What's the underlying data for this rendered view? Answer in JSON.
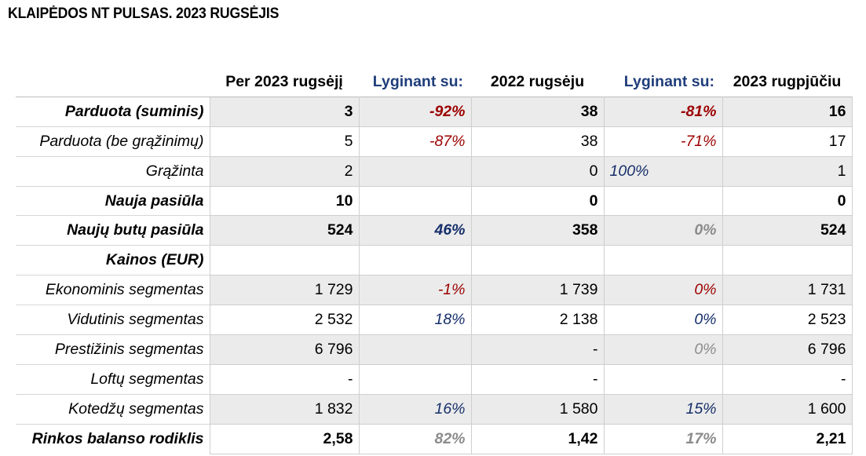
{
  "title": "KLAIPĖDOS NT PULSAS. 2023 RUGSĖJIS",
  "columns": {
    "c1": "Per 2023 rugsėjį",
    "c2": "Lyginant su:",
    "c3": "2022 rugsėju",
    "c4": "Lyginant su:",
    "c5": "2023 rugpjūčiu"
  },
  "colors": {
    "red": "#9c0000",
    "blue": "#162f6a",
    "gray": "#8c8c8c",
    "shade": "#ebebeb"
  },
  "rows": [
    {
      "label": "Parduota (suminis)",
      "bold": true,
      "shade": true,
      "c1": "3",
      "c2": "-92%",
      "c2_color": "red",
      "c3": "38",
      "c4": "-81%",
      "c4_color": "red",
      "c5": "16"
    },
    {
      "label": "Parduota (be grąžinimų)",
      "bold": false,
      "shade": false,
      "c1": "5",
      "c2": "-87%",
      "c2_color": "red",
      "c3": "38",
      "c4": "-71%",
      "c4_color": "red",
      "c5": "17"
    },
    {
      "label": "Grąžinta",
      "bold": false,
      "shade": true,
      "c1": "2",
      "c2": "",
      "c2_color": "",
      "c3": "0",
      "c4": "100%",
      "c4_color": "blue",
      "c4_align": "left",
      "c5": "1"
    },
    {
      "label": "Nauja pasiūla",
      "bold": true,
      "shade": false,
      "c1": "10",
      "c2": "",
      "c2_color": "",
      "c3": "0",
      "c4": "",
      "c4_color": "",
      "c5": "0"
    },
    {
      "label": "Naujų butų pasiūla",
      "bold": true,
      "shade": true,
      "c1": "524",
      "c2": "46%",
      "c2_color": "blue",
      "c3": "358",
      "c4": "0%",
      "c4_color": "gray",
      "c5": "524"
    },
    {
      "label": "Kainos (EUR)",
      "bold": true,
      "shade": false,
      "c1": "",
      "c2": "",
      "c2_color": "",
      "c3": "",
      "c4": "",
      "c4_color": "",
      "c5": ""
    },
    {
      "label": "Ekonominis segmentas",
      "bold": false,
      "shade": true,
      "c1": "1 729",
      "c2": "-1%",
      "c2_color": "red",
      "c3": "1 739",
      "c4": "0%",
      "c4_color": "red",
      "c5": "1 731"
    },
    {
      "label": "Vidutinis segmentas",
      "bold": false,
      "shade": false,
      "c1": "2 532",
      "c2": "18%",
      "c2_color": "blue",
      "c3": "2 138",
      "c4": "0%",
      "c4_color": "blue",
      "c5": "2 523"
    },
    {
      "label": "Prestižinis segmentas",
      "bold": false,
      "shade": true,
      "c1": "6 796",
      "c2": "",
      "c2_color": "",
      "c3": "-",
      "c4": "0%",
      "c4_color": "gray",
      "c5": "6 796"
    },
    {
      "label": "Loftų segmentas",
      "bold": false,
      "shade": false,
      "c1": "-",
      "c2": "",
      "c2_color": "",
      "c3": "-",
      "c4": "",
      "c4_color": "",
      "c5": "-"
    },
    {
      "label": "Kotedžų segmentas",
      "bold": false,
      "shade": true,
      "c1": "1 832",
      "c2": "16%",
      "c2_color": "blue",
      "c3": "1 580",
      "c4": "15%",
      "c4_color": "blue",
      "c5": "1 600"
    },
    {
      "label": "Rinkos balanso rodiklis",
      "bold": true,
      "shade": false,
      "c1": "2,58",
      "c2": "82%",
      "c2_color": "gray",
      "c3": "1,42",
      "c4": "17%",
      "c4_color": "gray",
      "c5": "2,21"
    }
  ]
}
